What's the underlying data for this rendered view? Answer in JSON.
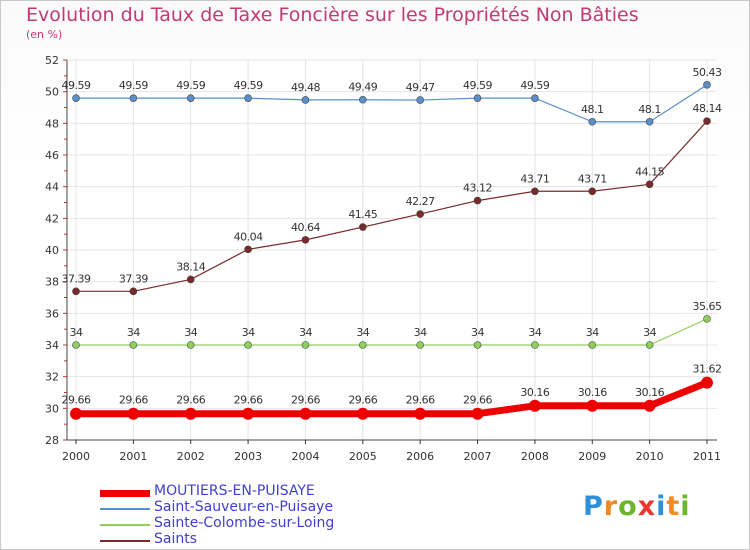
{
  "title": "Evolution du Taux de Taxe Foncière sur les Propriétés Non Bâties",
  "subtitle": "(en %)",
  "logo": {
    "letters": [
      {
        "ch": "P",
        "color": "#2f8fd8"
      },
      {
        "ch": "r",
        "color": "#f08a24"
      },
      {
        "ch": "o",
        "color": "#6cb52d"
      },
      {
        "ch": "x",
        "color": "#e8372e"
      },
      {
        "ch": "i",
        "color": "#2f8fd8"
      },
      {
        "ch": "t",
        "color": "#f08a24"
      },
      {
        "ch": "i",
        "color": "#6cb52d"
      }
    ]
  },
  "chart_data": {
    "type": "line",
    "x": [
      "2000",
      "2001",
      "2002",
      "2003",
      "2004",
      "2005",
      "2006",
      "2007",
      "2008",
      "2009",
      "2010",
      "2011"
    ],
    "ylim": [
      28,
      52
    ],
    "yticks": [
      28,
      30,
      32,
      34,
      36,
      38,
      40,
      42,
      44,
      46,
      48,
      50,
      52
    ],
    "grid": true,
    "legend_placement": "bottom-left",
    "series": [
      {
        "name": "MOUTIERS-EN-PUISAYE",
        "color": "#ee0000",
        "labels": [
          "29.66",
          "29.66",
          "29.66",
          "29.66",
          "29.66",
          "29.66",
          "29.66",
          "29.66",
          "30.16",
          "30.16",
          "30.16",
          "31.62"
        ],
        "values": [
          29.66,
          29.66,
          29.66,
          29.66,
          29.66,
          29.66,
          29.66,
          29.66,
          30.16,
          30.16,
          30.16,
          31.62
        ]
      },
      {
        "name": "Saint-Sauveur-en-Puisaye",
        "color": "#5b8fc9",
        "labels": [
          "49.59",
          "49.59",
          "49.59",
          "49.59",
          "49.48",
          "49.49",
          "49.47",
          "49.59",
          "49.59",
          "48.1",
          "48.1",
          "50.43"
        ],
        "values": [
          49.59,
          49.59,
          49.59,
          49.59,
          49.48,
          49.49,
          49.47,
          49.59,
          49.59,
          48.1,
          48.1,
          50.43
        ]
      },
      {
        "name": "Sainte-Colombe-sur-Loing",
        "color": "#8fd05a",
        "labels": [
          "34",
          "34",
          "34",
          "34",
          "34",
          "34",
          "34",
          "34",
          "34",
          "34",
          "34",
          "35.65"
        ],
        "values": [
          34,
          34,
          34,
          34,
          34,
          34,
          34,
          34,
          34,
          34,
          34,
          35.65
        ]
      },
      {
        "name": "Saints",
        "color": "#7a2a2a",
        "labels": [
          "37.39",
          "37.39",
          "38.14",
          "40.04",
          "40.64",
          "41.45",
          "42.27",
          "43.12",
          "43.71",
          "43.71",
          "44.15",
          "48.14"
        ],
        "values": [
          37.39,
          37.39,
          38.14,
          40.04,
          40.64,
          41.45,
          42.27,
          43.12,
          43.71,
          43.71,
          44.15,
          48.14
        ]
      }
    ]
  }
}
